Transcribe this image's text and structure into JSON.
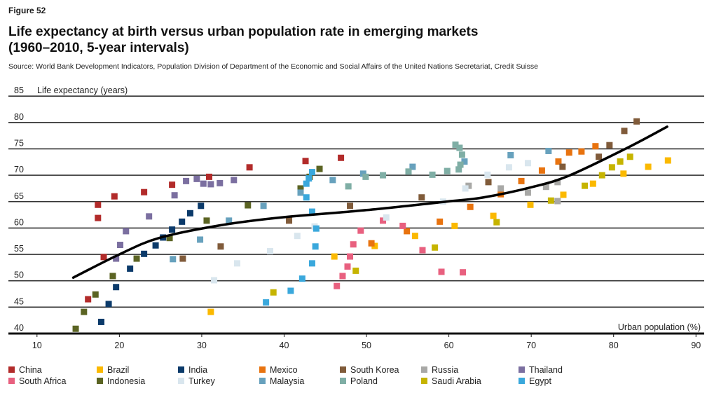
{
  "figure_label": "Figure 52",
  "title_line1": "Life expectancy at birth versus urban population rate in emerging markets",
  "title_line2": "(1960–2010, 5-year intervals)",
  "source": "Source: World Bank Development Indicators, Population Division of Department of the Economic and Social Affairs of the United Nations Secretariat, Credit Suisse",
  "chart_data": {
    "type": "scatter",
    "xlabel": "Urban population (%)",
    "ylabel": "Life expectancy (years)",
    "xlim": [
      10,
      90
    ],
    "ylim": [
      40,
      85
    ],
    "xticks": [
      10,
      20,
      30,
      40,
      50,
      60,
      70,
      80,
      90
    ],
    "yticks": [
      40,
      45,
      50,
      55,
      60,
      65,
      70,
      75,
      80,
      85
    ],
    "grid": "horizontal",
    "legend_position": "bottom",
    "series": [
      {
        "name": "China",
        "color": "#B22B2A",
        "points": [
          [
            16.2,
            46.5
          ],
          [
            18.1,
            54.5
          ],
          [
            17.4,
            61.9
          ],
          [
            17.4,
            64.4
          ],
          [
            19.4,
            66.0
          ],
          [
            23.0,
            66.8
          ],
          [
            26.4,
            68.2
          ],
          [
            30.9,
            69.7
          ],
          [
            35.8,
            71.5
          ],
          [
            42.6,
            72.7
          ],
          [
            46.9,
            73.3
          ]
        ]
      },
      {
        "name": "Brazil",
        "color": "#FBB900",
        "points": [
          [
            31.1,
            44.1
          ],
          [
            46.1,
            54.6
          ],
          [
            51.0,
            56.6
          ],
          [
            55.9,
            58.5
          ],
          [
            60.7,
            60.4
          ],
          [
            65.4,
            62.3
          ],
          [
            69.9,
            64.4
          ],
          [
            73.9,
            66.3
          ],
          [
            77.5,
            68.4
          ],
          [
            81.2,
            70.3
          ],
          [
            84.2,
            71.6
          ],
          [
            86.6,
            72.8
          ]
        ]
      },
      {
        "name": "India",
        "color": "#0B3A6A",
        "points": [
          [
            17.8,
            42.2
          ],
          [
            18.7,
            45.6
          ],
          [
            19.6,
            48.8
          ],
          [
            21.3,
            52.3
          ],
          [
            23.0,
            55.1
          ],
          [
            24.4,
            56.7
          ],
          [
            25.3,
            58.2
          ],
          [
            26.4,
            59.7
          ],
          [
            27.6,
            61.2
          ],
          [
            28.6,
            62.8
          ],
          [
            29.9,
            64.2
          ]
        ]
      },
      {
        "name": "Mexico",
        "color": "#E8730F",
        "points": [
          [
            50.6,
            57.1
          ],
          [
            54.9,
            59.4
          ],
          [
            58.9,
            61.2
          ],
          [
            62.6,
            64.0
          ],
          [
            66.3,
            66.4
          ],
          [
            68.8,
            68.9
          ],
          [
            71.3,
            70.9
          ],
          [
            73.3,
            72.6
          ],
          [
            74.6,
            74.3
          ],
          [
            76.1,
            74.5
          ],
          [
            77.8,
            75.5
          ]
        ]
      },
      {
        "name": "South Korea",
        "color": "#805B3A",
        "points": [
          [
            27.7,
            54.2
          ],
          [
            32.3,
            56.5
          ],
          [
            40.6,
            61.4
          ],
          [
            48.0,
            64.2
          ],
          [
            56.7,
            65.8
          ],
          [
            64.8,
            68.7
          ],
          [
            73.8,
            71.6
          ],
          [
            78.2,
            73.5
          ],
          [
            79.5,
            75.7
          ],
          [
            81.3,
            78.4
          ],
          [
            82.8,
            80.2
          ]
        ]
      },
      {
        "name": "Russia",
        "color": "#A8A8A6",
        "points": [
          [
            62.4,
            68.0
          ],
          [
            66.3,
            67.5
          ],
          [
            69.6,
            66.7
          ],
          [
            71.8,
            67.8
          ],
          [
            73.2,
            68.7
          ],
          [
            73.2,
            65.1
          ]
        ]
      },
      {
        "name": "Thailand",
        "color": "#7B6FA0",
        "points": [
          [
            19.6,
            54.2
          ],
          [
            20.1,
            56.8
          ],
          [
            20.8,
            59.4
          ],
          [
            23.6,
            62.2
          ],
          [
            26.7,
            66.2
          ],
          [
            28.1,
            68.9
          ],
          [
            29.4,
            69.3
          ],
          [
            30.2,
            68.4
          ],
          [
            31.1,
            68.3
          ],
          [
            32.2,
            68.5
          ],
          [
            33.9,
            69.1
          ]
        ]
      },
      {
        "name": "South Africa",
        "color": "#E8607F",
        "points": [
          [
            46.4,
            49.0
          ],
          [
            47.1,
            50.9
          ],
          [
            47.7,
            52.7
          ],
          [
            48.0,
            54.6
          ],
          [
            48.4,
            56.9
          ],
          [
            49.3,
            59.5
          ],
          [
            52.0,
            61.4
          ],
          [
            54.4,
            60.4
          ],
          [
            56.8,
            55.8
          ],
          [
            59.1,
            51.7
          ],
          [
            61.7,
            51.6
          ]
        ]
      },
      {
        "name": "Indonesia",
        "color": "#5B6423",
        "points": [
          [
            14.7,
            40.9
          ],
          [
            15.7,
            44.1
          ],
          [
            17.1,
            47.4
          ],
          [
            19.2,
            50.9
          ],
          [
            22.1,
            54.2
          ],
          [
            26.1,
            58.1
          ],
          [
            30.6,
            61.4
          ],
          [
            35.6,
            64.3
          ],
          [
            42.0,
            67.5
          ],
          [
            43.1,
            69.7
          ],
          [
            44.3,
            71.2
          ]
        ]
      },
      {
        "name": "Turkey",
        "color": "#D9E6EE",
        "points": [
          [
            31.5,
            50.1
          ],
          [
            34.3,
            53.3
          ],
          [
            38.3,
            55.6
          ],
          [
            41.6,
            58.5
          ],
          [
            43.7,
            60.3
          ],
          [
            52.4,
            62.0
          ],
          [
            59.3,
            65.0
          ],
          [
            62.0,
            67.5
          ],
          [
            64.7,
            70.1
          ],
          [
            67.3,
            71.5
          ],
          [
            69.6,
            72.3
          ]
        ]
      },
      {
        "name": "Malaysia",
        "color": "#67A1BD",
        "points": [
          [
            26.5,
            54.1
          ],
          [
            29.8,
            57.8
          ],
          [
            33.3,
            61.4
          ],
          [
            37.5,
            64.2
          ],
          [
            42.0,
            66.7
          ],
          [
            45.9,
            69.1
          ],
          [
            49.6,
            70.3
          ],
          [
            55.6,
            71.6
          ],
          [
            61.9,
            72.6
          ],
          [
            67.5,
            73.8
          ],
          [
            72.1,
            74.6
          ]
        ]
      },
      {
        "name": "Poland",
        "color": "#7FAEA5",
        "points": [
          [
            47.8,
            67.9
          ],
          [
            49.9,
            69.7
          ],
          [
            52.0,
            70.0
          ],
          [
            55.1,
            70.7
          ],
          [
            58.0,
            70.1
          ],
          [
            59.8,
            70.8
          ],
          [
            61.2,
            71.1
          ],
          [
            61.4,
            72.0
          ],
          [
            61.6,
            73.9
          ],
          [
            61.3,
            75.2
          ],
          [
            60.8,
            75.8
          ]
        ]
      },
      {
        "name": "Saudi Arabia",
        "color": "#C6B400",
        "points": [
          [
            38.7,
            47.8
          ],
          [
            48.7,
            51.9
          ],
          [
            58.3,
            56.3
          ],
          [
            65.8,
            61.1
          ],
          [
            72.4,
            65.2
          ],
          [
            76.5,
            68.0
          ],
          [
            78.6,
            70.0
          ],
          [
            79.8,
            71.5
          ],
          [
            80.8,
            72.6
          ],
          [
            82.0,
            73.5
          ]
        ]
      },
      {
        "name": "Egypt",
        "color": "#3AA8DC",
        "points": [
          [
            37.8,
            45.9
          ],
          [
            40.8,
            48.1
          ],
          [
            42.2,
            50.4
          ],
          [
            43.4,
            53.3
          ],
          [
            43.8,
            56.5
          ],
          [
            43.9,
            59.9
          ],
          [
            43.4,
            63.1
          ],
          [
            42.7,
            65.8
          ],
          [
            42.7,
            68.4
          ],
          [
            43.0,
            69.4
          ],
          [
            43.4,
            70.6
          ]
        ]
      }
    ],
    "trend_line": [
      [
        14.4,
        50.6
      ],
      [
        20,
        55.0
      ],
      [
        24.8,
        58.1
      ],
      [
        32.2,
        60.5
      ],
      [
        39.6,
        62.0
      ],
      [
        50,
        63.4
      ],
      [
        59.7,
        65.0
      ],
      [
        64.2,
        65.8
      ],
      [
        70.2,
        67.8
      ],
      [
        74.7,
        70.0
      ],
      [
        81.8,
        75.3
      ],
      [
        86.5,
        79.2
      ]
    ]
  }
}
